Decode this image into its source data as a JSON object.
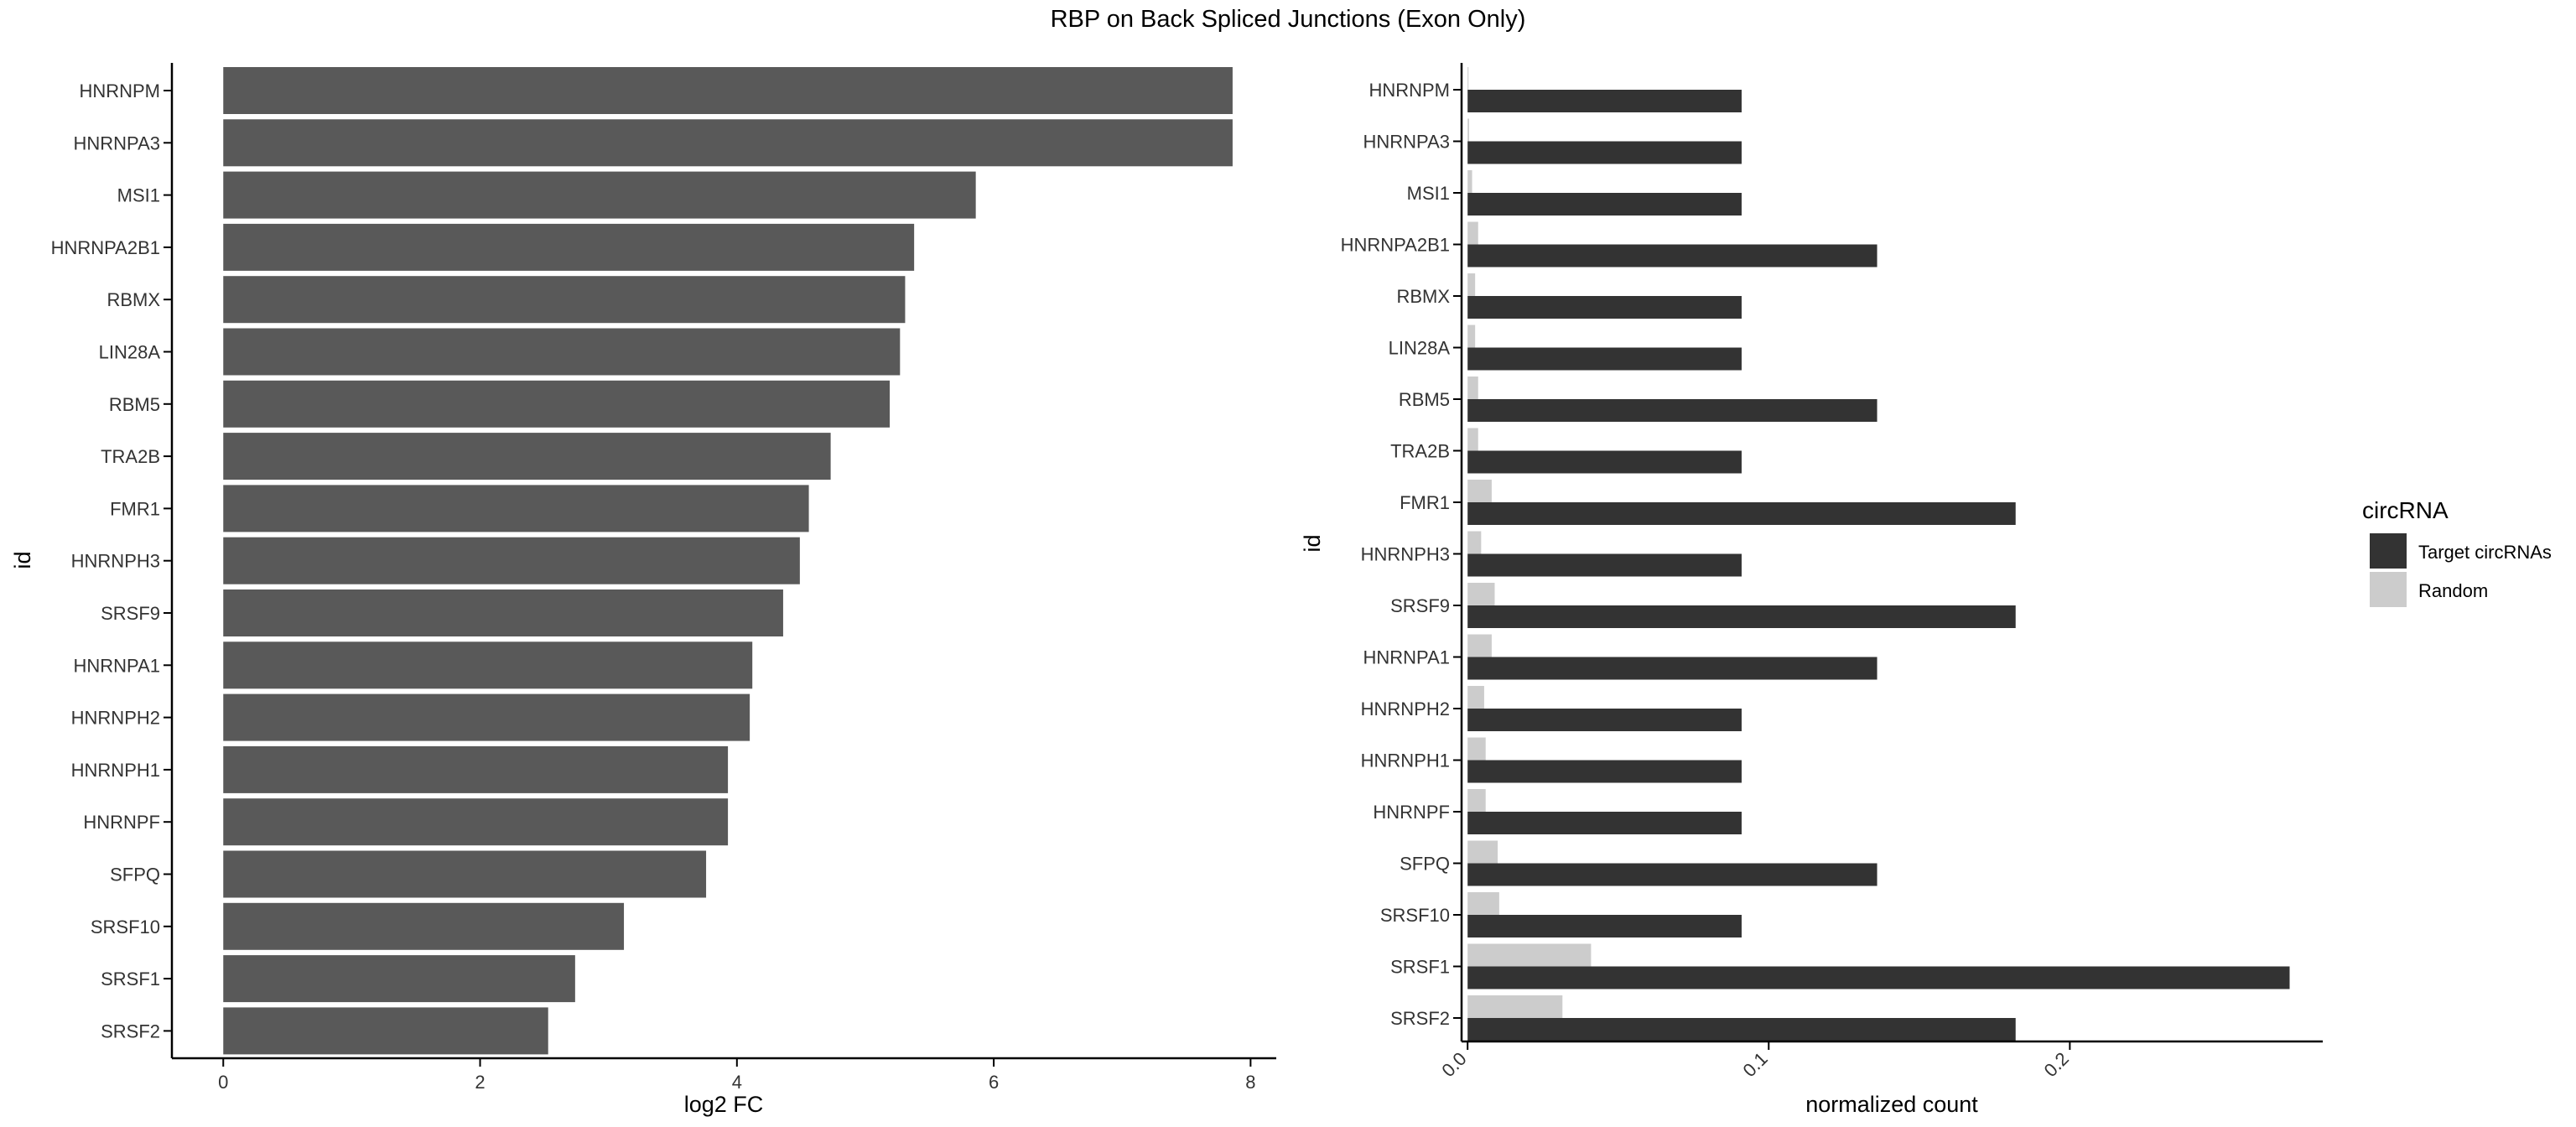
{
  "figure": {
    "title": "RBP on Back Spliced Junctions (Exon Only)"
  },
  "chart_data": [
    {
      "type": "bar",
      "orientation": "horizontal",
      "title": "",
      "xlabel": "log2 FC",
      "ylabel": "id",
      "xlim": [
        -0.4,
        8.2
      ],
      "xticks": [
        0,
        2,
        4,
        6,
        8
      ],
      "grid": false,
      "bar_color": "#595959",
      "categories": [
        "HNRNPM",
        "HNRNPA3",
        "MSI1",
        "HNRNPA2B1",
        "RBMX",
        "LIN28A",
        "RBM5",
        "TRA2B",
        "FMR1",
        "HNRNPH3",
        "SRSF9",
        "HNRNPA1",
        "HNRNPH2",
        "HNRNPH1",
        "HNRNPF",
        "SFPQ",
        "SRSF10",
        "SRSF1",
        "SRSF2"
      ],
      "values": [
        7.86,
        7.86,
        5.86,
        5.38,
        5.31,
        5.27,
        5.19,
        4.73,
        4.56,
        4.49,
        4.36,
        4.12,
        4.1,
        3.93,
        3.93,
        3.76,
        3.12,
        2.74,
        2.53
      ]
    },
    {
      "type": "bar",
      "orientation": "horizontal",
      "grouping": "dodge",
      "title": "",
      "xlabel": "normalized count",
      "ylabel": "id",
      "xlim": [
        -0.002,
        0.284
      ],
      "xticks": [
        0.0,
        0.1,
        0.2
      ],
      "xtick_labels": [
        "0.0",
        "0.1",
        "0.2"
      ],
      "grid": false,
      "legend": {
        "title": "circRNA",
        "position": "right"
      },
      "categories": [
        "HNRNPM",
        "HNRNPA3",
        "MSI1",
        "HNRNPA2B1",
        "RBMX",
        "LIN28A",
        "RBM5",
        "TRA2B",
        "FMR1",
        "HNRNPH3",
        "SRSF9",
        "HNRNPA1",
        "HNRNPH2",
        "HNRNPH1",
        "HNRNPF",
        "SFPQ",
        "SRSF10",
        "SRSF1",
        "SRSF2"
      ],
      "series": [
        {
          "name": "Target circRNAs",
          "color": "#333333",
          "values": [
            0.091,
            0.091,
            0.091,
            0.136,
            0.091,
            0.091,
            0.136,
            0.091,
            0.182,
            0.091,
            0.182,
            0.136,
            0.091,
            0.091,
            0.091,
            0.136,
            0.091,
            0.273,
            0.182
          ]
        },
        {
          "name": "Random",
          "color": "#cccccc",
          "values": [
            0.0003,
            0.0005,
            0.0015,
            0.0035,
            0.0025,
            0.0025,
            0.0035,
            0.0035,
            0.008,
            0.0045,
            0.009,
            0.008,
            0.0055,
            0.006,
            0.006,
            0.01,
            0.0105,
            0.041,
            0.0315
          ]
        }
      ]
    }
  ]
}
